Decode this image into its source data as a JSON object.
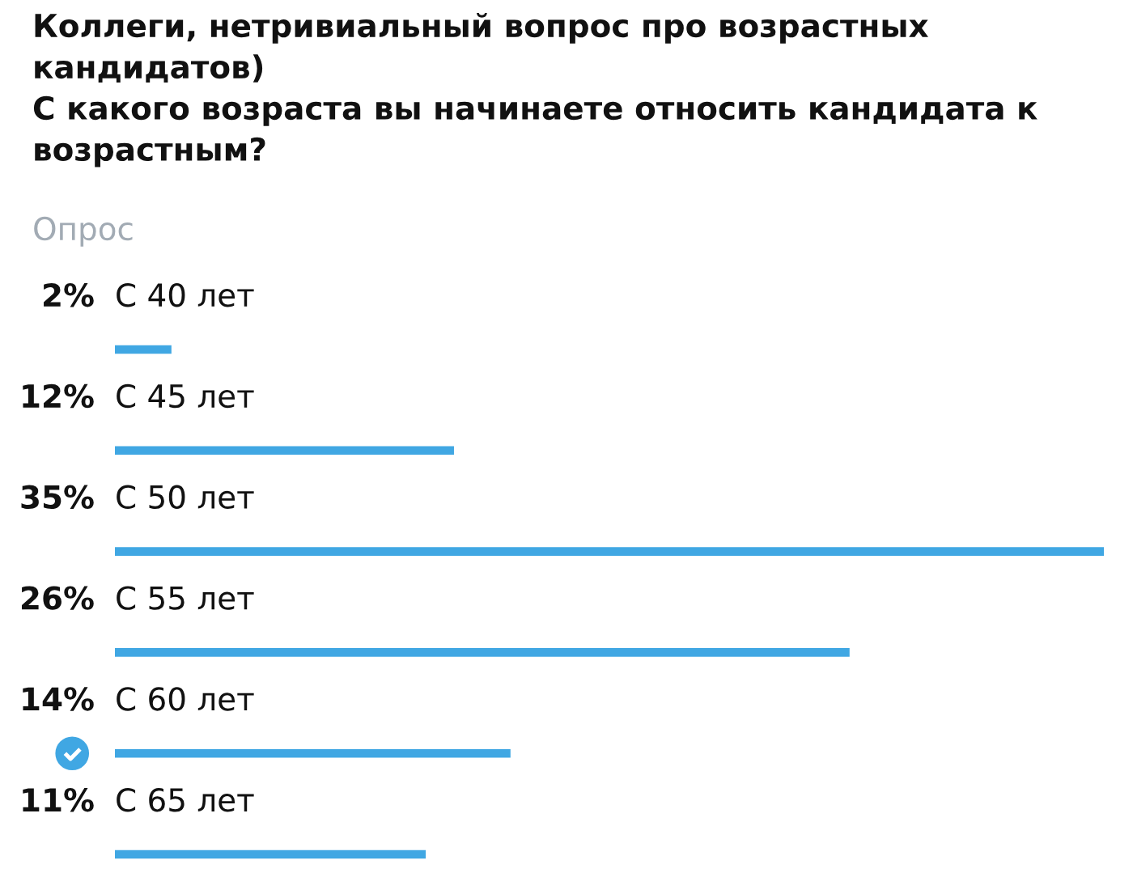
{
  "chart_data": {
    "type": "bar",
    "orientation": "horizontal",
    "title": "Коллеги, нетривиальный вопрос про возрастных кандидатов)\nС какого возраста вы начинаете относить кандидата к возрастным?",
    "subtitle": "Опрос",
    "categories": [
      "С 40 лет",
      "С 45 лет",
      "С 50 лет",
      "С 55 лет",
      "С 60 лет",
      "С 65 лет"
    ],
    "values": [
      2,
      12,
      35,
      26,
      14,
      11
    ],
    "value_labels": [
      "2%",
      "12%",
      "35%",
      "26%",
      "14%",
      "11%"
    ],
    "color": "#40a7e3",
    "xlim": [
      0,
      35
    ],
    "tick_labels": "y"
  }
}
